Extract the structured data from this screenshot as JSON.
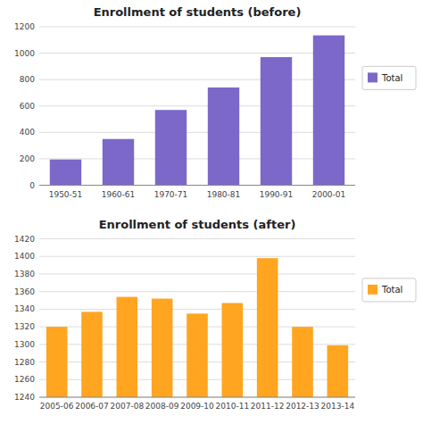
{
  "chart_data": [
    {
      "type": "bar",
      "title": "Enrollment of students (before)",
      "categories": [
        "1950-51",
        "1960-61",
        "1970-71",
        "1980-81",
        "1990-91",
        "2000-01"
      ],
      "series": [
        {
          "name": "Total",
          "color": "#7B68C8",
          "values": [
            195,
            350,
            570,
            740,
            970,
            1135
          ]
        }
      ],
      "ylim": [
        0,
        1200
      ],
      "yticks": [
        0,
        200,
        400,
        600,
        800,
        1000,
        1200
      ],
      "grid": true,
      "legend": "right"
    },
    {
      "type": "bar",
      "title": "Enrollment of students (after)",
      "categories": [
        "2005-06",
        "2006-07",
        "2007-08",
        "2008-09",
        "2009-10",
        "2010-11",
        "2011-12",
        "2012-13",
        "2013-14"
      ],
      "series": [
        {
          "name": "Total",
          "color": "#FFA520",
          "values": [
            1320,
            1337,
            1354,
            1352,
            1335,
            1347,
            1398,
            1320,
            1299
          ]
        }
      ],
      "ylim": [
        1240,
        1420
      ],
      "yticks": [
        1240,
        1260,
        1280,
        1300,
        1320,
        1340,
        1360,
        1380,
        1400,
        1420
      ],
      "grid": true,
      "legend": "right"
    }
  ]
}
